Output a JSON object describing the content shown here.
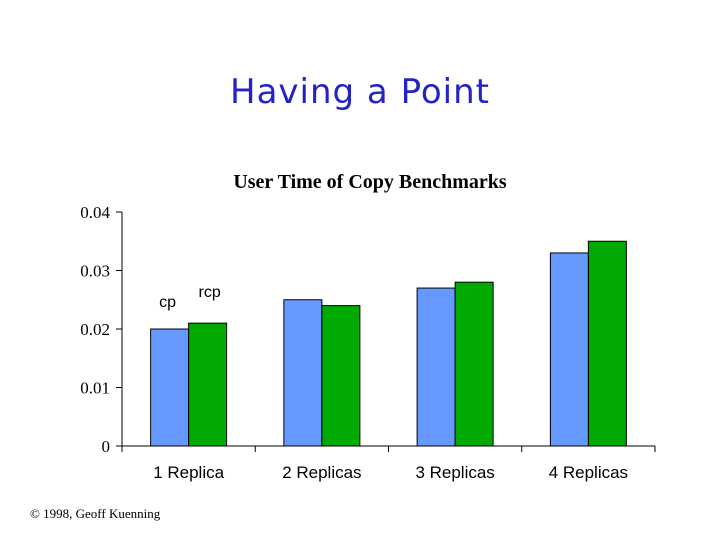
{
  "slide": {
    "title": "Having a Point",
    "footer": "© 1998, Geoff Kuenning"
  },
  "colors": {
    "title": "#2323c8",
    "cp": "#6699ff",
    "rcp": "#00aa00"
  },
  "chart_data": {
    "type": "bar",
    "title": "User Time of Copy Benchmarks",
    "xlabel": "",
    "ylabel": "",
    "categories": [
      "1 Replica",
      "2 Replicas",
      "3 Replicas",
      "4 Replicas"
    ],
    "series": [
      {
        "name": "cp",
        "values": [
          0.02,
          0.025,
          0.027,
          0.033
        ]
      },
      {
        "name": "rcp",
        "values": [
          0.021,
          0.024,
          0.028,
          0.035
        ]
      }
    ],
    "ylim": [
      0,
      0.04
    ],
    "yticks": [
      "0",
      "0.01",
      "0.02",
      "0.03",
      "0.04"
    ],
    "grid": false,
    "legend": "labels above first bar group"
  }
}
